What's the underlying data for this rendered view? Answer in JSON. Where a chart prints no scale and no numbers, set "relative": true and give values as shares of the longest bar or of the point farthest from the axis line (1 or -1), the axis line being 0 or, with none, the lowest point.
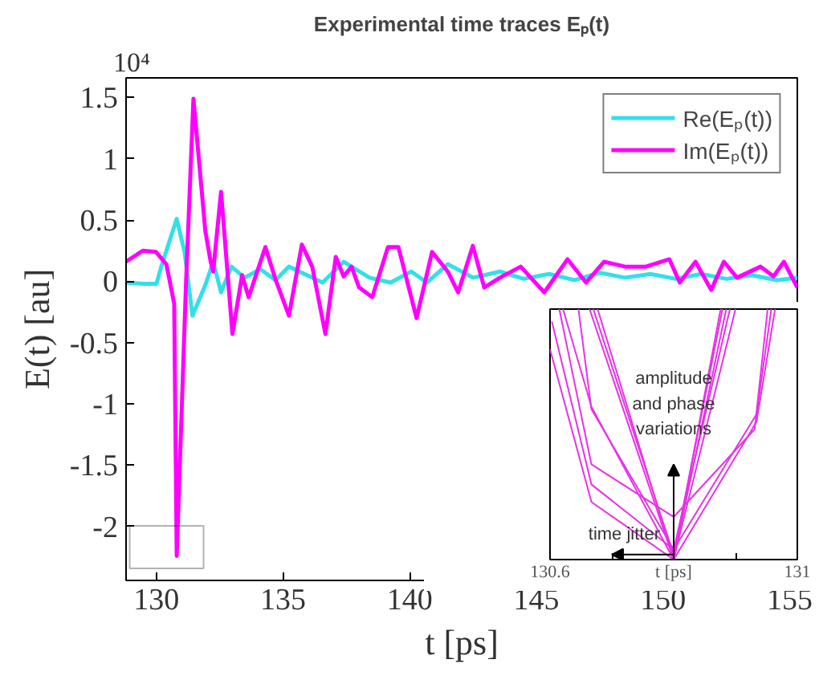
{
  "chart_data": [
    {
      "type": "line",
      "title": "Experimental time traces Eₚ(t)",
      "xlabel": "t [ps]",
      "ylabel": "E(t) [au]",
      "xlim": [
        128.8,
        155.3
      ],
      "ylim": [
        -2.44,
        1.66
      ],
      "xticks": [
        130,
        135,
        140,
        145,
        150,
        155
      ],
      "yticks": [
        -2,
        -1.5,
        -1,
        -0.5,
        0,
        0.5,
        1,
        1.5
      ],
      "annotations": [
        "10⁴"
      ],
      "legend": "top right",
      "grid": false,
      "series": [
        {
          "name": "Re(Eₚ(t))",
          "color": "#33e0e6",
          "x": [
            128.8,
            129.5,
            130.0,
            130.19,
            130.8,
            131.11,
            131.42,
            131.93,
            132.24,
            132.55,
            132.96,
            133.48,
            134.1,
            134.7,
            135.23,
            136.56,
            137.39,
            138.41,
            139.24,
            140.06,
            140.68,
            141.5,
            142.5,
            143.56,
            144.5,
            145.5,
            146.5,
            147.5,
            148.5,
            149.5,
            150.5,
            151.5,
            152.5,
            153.5,
            154.5,
            155.3
          ],
          "values": [
            -0.01,
            -0.02,
            -0.02,
            0.12,
            0.51,
            0.24,
            -0.28,
            -0.03,
            0.16,
            -0.09,
            0.12,
            0.03,
            0.1,
            0.01,
            0.12,
            -0.01,
            0.16,
            0.03,
            -0.01,
            0.08,
            -0.01,
            0.14,
            0.03,
            0.08,
            0.02,
            0.06,
            0.01,
            0.07,
            0.03,
            0.06,
            0.02,
            0.06,
            0.02,
            0.05,
            0.01,
            0.03
          ]
        },
        {
          "name": "Im(Eₚ(t))",
          "color": "#ff00ff",
          "x": [
            128.8,
            129.46,
            129.98,
            130.39,
            130.7,
            130.8,
            131.17,
            131.46,
            131.93,
            132.14,
            132.24,
            132.55,
            133.0,
            133.38,
            133.64,
            134.3,
            134.71,
            135.23,
            135.74,
            136.15,
            136.67,
            137.08,
            137.39,
            137.7,
            138.0,
            138.52,
            139.14,
            139.55,
            140.27,
            140.88,
            141.5,
            141.91,
            142.49,
            142.94,
            143.56,
            144.38,
            145.31,
            146.23,
            146.96,
            147.67,
            148.5,
            149.32,
            150.25,
            150.66,
            151.28,
            151.9,
            152.4,
            152.92,
            153.85,
            154.36,
            154.77,
            155.3
          ],
          "values": [
            0.16,
            0.25,
            0.24,
            0.14,
            -0.18,
            -2.24,
            0,
            1.49,
            0.41,
            0.16,
            0.08,
            0.73,
            -0.43,
            0.05,
            -0.13,
            0.28,
            0.01,
            -0.28,
            0.3,
            0.12,
            -0.43,
            0.2,
            0.04,
            0.12,
            -0.05,
            -0.13,
            0.28,
            0.28,
            -0.3,
            0.24,
            0.08,
            -0.09,
            0.29,
            -0.05,
            0.03,
            0.12,
            -0.09,
            0.18,
            -0.01,
            0.16,
            0.12,
            0.12,
            0.18,
            -0.01,
            0.16,
            -0.07,
            0.16,
            0.03,
            0.12,
            0.04,
            0.16,
            -0.05
          ]
        }
      ]
    },
    {
      "type": "line",
      "relative": true,
      "xlim": [
        130.6,
        131.0
      ],
      "xticks": [
        130.6,
        {
          "value": 130.7,
          "label": null
        },
        {
          "value": 130.8,
          "label": "t [ps]"
        },
        {
          "value": 130.9,
          "label": null
        },
        131.0
      ],
      "annotations": [
        "amplitude\nand phase\nvariations",
        "time jitter"
      ],
      "series": [
        {
          "color": "#e633e6",
          "x": [
            130.6,
            130.667,
            130.8,
            130.934,
            130.964
          ],
          "values": [
            0.84,
            0.23,
            0,
            0.55,
            1
          ]
        },
        {
          "color": "#e633e6",
          "x": [
            130.603,
            130.667,
            130.8,
            130.934,
            130.958
          ],
          "values": [
            0.95,
            0.3,
            0.04,
            0.58,
            1
          ]
        },
        {
          "color": "#e633e6",
          "x": [
            130.615,
            130.667,
            130.8,
            130.931,
            130.952
          ],
          "values": [
            1,
            0.38,
            0.17,
            0.52,
            1
          ]
        },
        {
          "color": "#e633e6",
          "x": [
            130.621,
            130.667,
            130.8,
            130.885
          ],
          "values": [
            1,
            0.61,
            0,
            1
          ]
        },
        {
          "color": "#e633e6",
          "x": [
            130.646,
            130.667,
            130.8,
            130.891
          ],
          "values": [
            1,
            0.6,
            0.04,
            1
          ]
        },
        {
          "color": "#e633e6",
          "x": [
            130.664,
            130.8,
            130.876
          ],
          "values": [
            1,
            0,
            1
          ]
        },
        {
          "color": "#e633e6",
          "x": [
            130.67,
            130.8,
            130.879
          ],
          "values": [
            1,
            0.02,
            1
          ]
        },
        {
          "color": "#e633e6",
          "x": [
            130.677,
            130.8,
            130.9
          ],
          "values": [
            1,
            0,
            1
          ]
        }
      ]
    }
  ]
}
